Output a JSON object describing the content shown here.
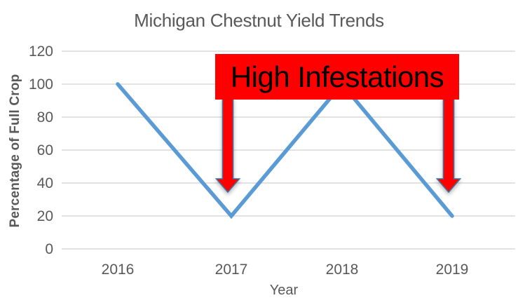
{
  "chart_data": {
    "type": "line",
    "title": "Michigan Chestnut Yield Trends",
    "xlabel": "Year",
    "ylabel": "Percentage of Full Crop",
    "categories": [
      "2016",
      "2017",
      "2018",
      "2019"
    ],
    "series": [
      {
        "name": "Percentage of Full Crop",
        "values": [
          100,
          20,
          100,
          20
        ]
      }
    ],
    "ylim": [
      0,
      120
    ],
    "yticks": [
      120,
      100,
      80,
      60,
      40,
      20,
      0
    ],
    "grid": "horizontal-only",
    "legend": "none",
    "line_color": "#5B9BD5",
    "annotation": {
      "text": "High Infestations",
      "box_fill": "#FE0000",
      "text_color": "#000000",
      "arrow_fill": "#FE0000",
      "arrow_outline": "#41719C",
      "arrow_targets": [
        "2017",
        "2019"
      ]
    },
    "colors": {
      "title_text": "#595959",
      "axis_text": "#595959",
      "gridline": "#D9D9D9",
      "background": "#FFFFFF"
    }
  }
}
